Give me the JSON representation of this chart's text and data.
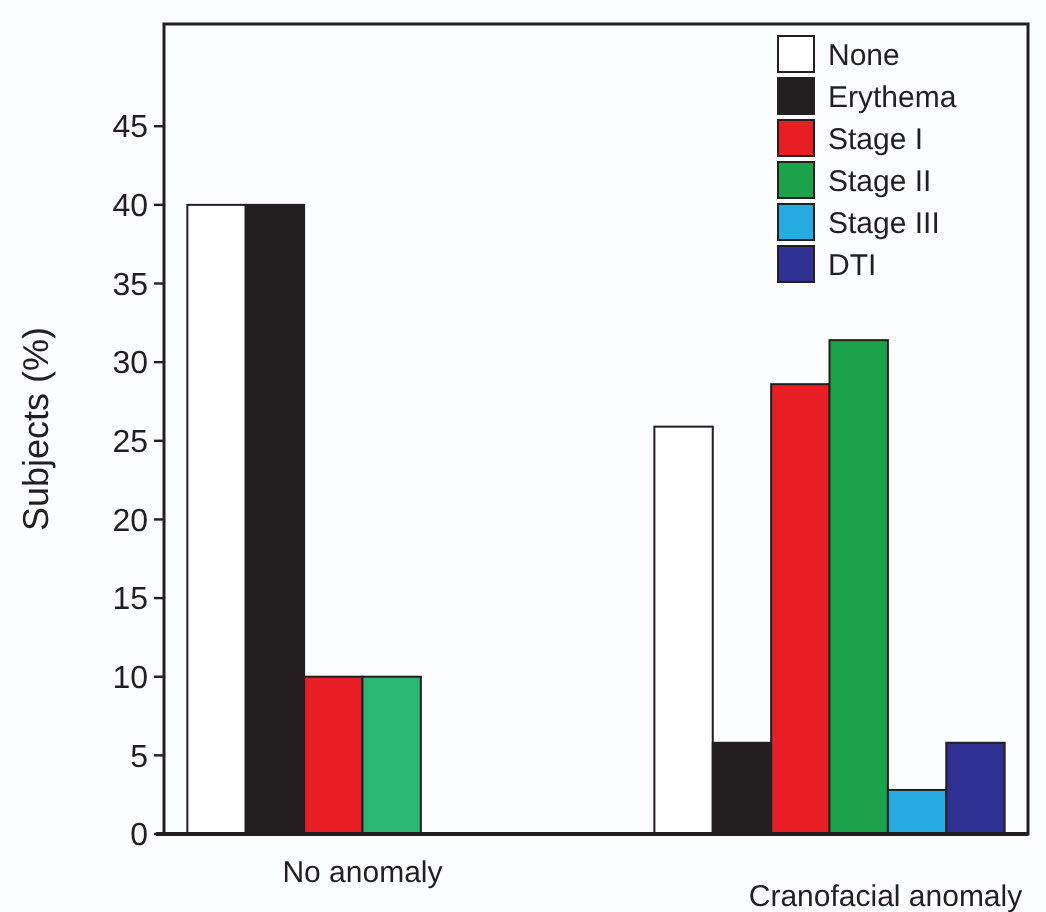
{
  "chart_data": {
    "type": "bar",
    "ylabel": "Subjects (%)",
    "categories": [
      "No anomaly",
      "Cranofacial anomaly"
    ],
    "ylim": [
      0,
      51.5
    ],
    "yticks": [
      0,
      5,
      10,
      15,
      20,
      25,
      30,
      35,
      40,
      45
    ],
    "legend": "top right",
    "grid": false,
    "series": [
      {
        "name": "None",
        "color": "#ffffff",
        "values": [
          40,
          25.9
        ]
      },
      {
        "name": "Erythema",
        "color": "#231f20",
        "values": [
          40,
          5.8
        ]
      },
      {
        "name": "Stage I",
        "color": "#e81e25",
        "values": [
          10,
          28.6
        ]
      },
      {
        "name": "Stage II",
        "color": "#1ba24a",
        "colors": [
          "#2bb673",
          "#1ba24a"
        ],
        "values": [
          10,
          31.4
        ]
      },
      {
        "name": "Stage III",
        "color": "#27aae1",
        "values": [
          0,
          2.8
        ]
      },
      {
        "name": "DTI",
        "color": "#2e3192",
        "values": [
          0,
          5.8
        ]
      }
    ]
  }
}
